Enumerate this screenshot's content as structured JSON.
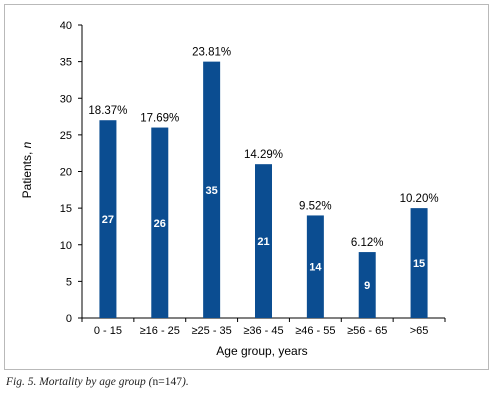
{
  "chart_data": {
    "type": "bar",
    "categories": [
      "0 - 15",
      "≥16 - 25",
      "≥25 - 35",
      "≥36 - 45",
      "≥46 - 55",
      "≥56 - 65",
      ">65"
    ],
    "values": [
      27,
      26,
      35,
      21,
      14,
      9,
      15
    ],
    "percent_labels": [
      "18.37%",
      "17.69%",
      "23.81%",
      "14.29%",
      "9.52%",
      "6.12%",
      "10.20%"
    ],
    "xlabel": "Age group, years",
    "ylabel_main": "Patients, ",
    "ylabel_italic": "n",
    "ylim": [
      0,
      40
    ],
    "yticks": [
      0,
      5,
      10,
      15,
      20,
      25,
      30,
      35,
      40
    ],
    "bar_color": "#0b4d91",
    "grid": false,
    "legend": "none"
  },
  "caption": {
    "prefix": "Fig. 5. Mortality by age group (",
    "n_value": "n=147",
    "suffix": ")."
  }
}
